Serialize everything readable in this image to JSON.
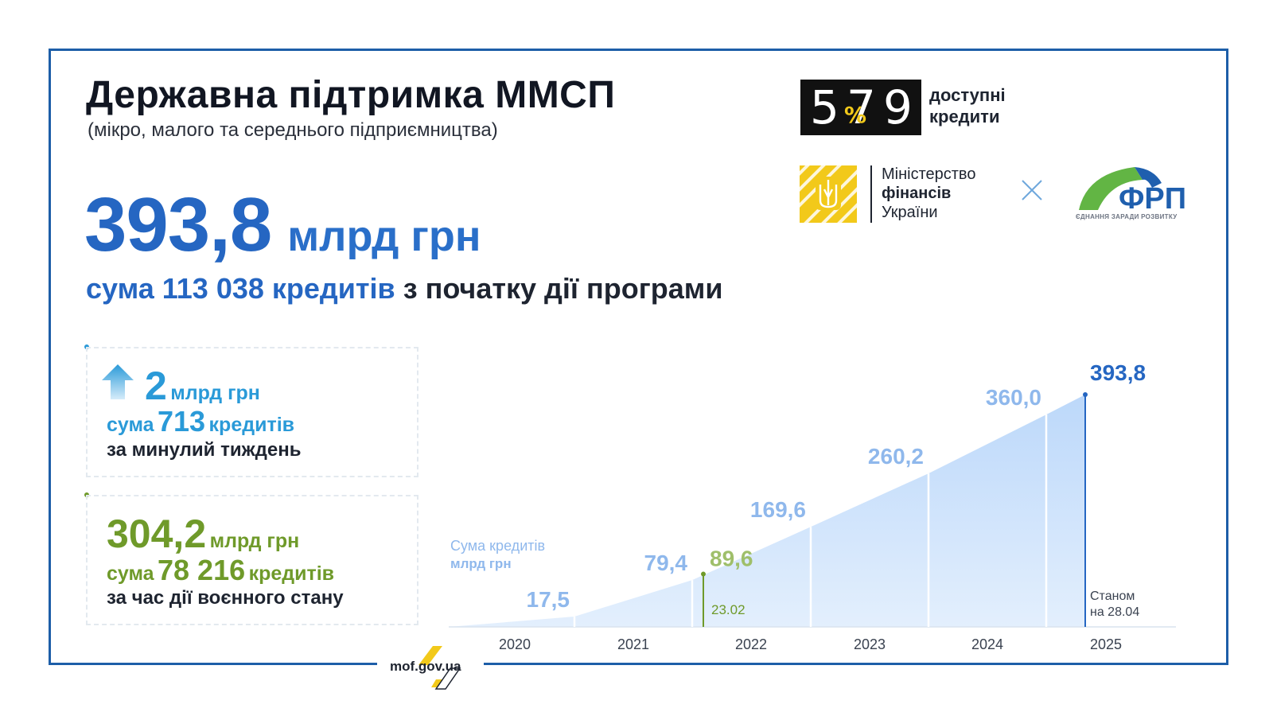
{
  "header": {
    "title": "Державна підтримка ММСП",
    "subtitle": "(мікро, малого та середнього підприємництва)"
  },
  "headline": {
    "value": "393,8",
    "unit": "млрд грн",
    "lead_prefix": "сума 113 038 кредитів",
    "lead_suffix": "з початку дії програми"
  },
  "cards": {
    "weekly": {
      "value": "2",
      "unit": "млрд грн",
      "sum_prefix": "сума",
      "count": "713",
      "count_unit": "кредитів",
      "period": "за минулий тиждень"
    },
    "war": {
      "value": "304,2",
      "unit": "млрд грн",
      "sum_prefix": "сума",
      "count": "78 216",
      "count_unit": "кредитів",
      "period": "за час дії воєнного стану"
    }
  },
  "logos": {
    "p579": {
      "num_left": "5",
      "num_mid": "7",
      "num_right": "9",
      "pct": "%",
      "line1": "доступні",
      "line2": "кредити"
    },
    "minfin": {
      "line1": "Міністерство",
      "line2": "фінансів",
      "line3": "України"
    },
    "frp": {
      "name": "ФРП",
      "tagline": "ЄДНАННЯ ЗАРАДИ РОЗВИТКУ"
    }
  },
  "footer": {
    "site": "mof.gov.ua"
  },
  "colors": {
    "brand_blue": "#2566c2",
    "light_blue": "#8fb8ec",
    "green": "#6f9a2a",
    "light_green": "#9fbf6a",
    "frame": "#1d5ea8",
    "area": "#c9e0fb",
    "yellow": "#f2c91a"
  },
  "chart_data": {
    "type": "area",
    "ylabel_line1": "Сума кредитів",
    "ylabel_line2": "млрд грн",
    "x_labels": [
      "2020",
      "2021",
      "2022",
      "2023",
      "2024",
      "2025"
    ],
    "points": [
      {
        "label": "2020",
        "value": 0
      },
      {
        "label": "2021",
        "value": 17.5,
        "text": "17,5"
      },
      {
        "label": "2022",
        "value": 79.4,
        "text": "79,4"
      },
      {
        "label": "2023",
        "value": 169.6,
        "text": "169,6"
      },
      {
        "label": "2024",
        "value": 260.2,
        "text": "260,2"
      },
      {
        "label": "2025",
        "value": 360.0,
        "text": "360,0"
      },
      {
        "label": "28.04.2025",
        "value": 393.8,
        "text": "393,8"
      }
    ],
    "war_marker": {
      "date": "23.02",
      "value": 89.6,
      "text": "89,6"
    },
    "current_note_line1": "Станом",
    "current_note_line2": "на 28.04"
  }
}
